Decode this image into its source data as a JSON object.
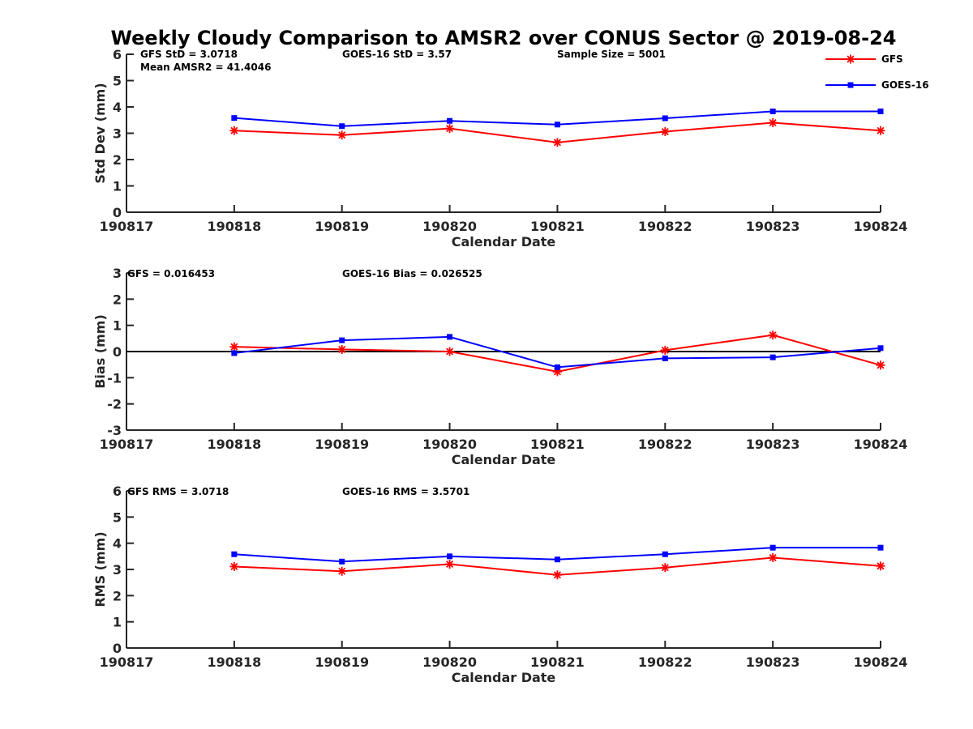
{
  "figure_title": "Weekly Cloudy Comparison to AMSR2 over CONUS Sector @ 2019-08-24",
  "legend": [
    {
      "label": "GFS",
      "color": "#ff0000",
      "marker": "asterisk"
    },
    {
      "label": "GOES-16",
      "color": "#0000ff",
      "marker": "square"
    }
  ],
  "chart_data": [
    {
      "type": "line",
      "title": "",
      "xlabel": "Calendar Date",
      "ylabel": "Std Dev (mm)",
      "xlim": [
        190817,
        190824
      ],
      "ylim": [
        0,
        6
      ],
      "x_ticks": [
        "190817",
        "190818",
        "190819",
        "190820",
        "190821",
        "190822",
        "190823",
        "190824"
      ],
      "y_ticks": [
        "0",
        "1",
        "2",
        "3",
        "4",
        "5",
        "6"
      ],
      "x": [
        190818,
        190819,
        190820,
        190821,
        190822,
        190823,
        190824
      ],
      "series": [
        {
          "name": "GFS",
          "color": "#ff0000",
          "marker": "asterisk",
          "values": [
            3.1,
            2.93,
            3.18,
            2.65,
            3.06,
            3.4,
            3.1
          ]
        },
        {
          "name": "GOES-16",
          "color": "#0000ff",
          "marker": "square",
          "values": [
            3.58,
            3.27,
            3.47,
            3.33,
            3.57,
            3.83,
            3.83
          ]
        }
      ],
      "annotations": [
        "GFS StD = 3.0718",
        "GOES-16 StD = 3.57",
        "Sample Size = 5001",
        "Mean AMSR2 = 41.4046"
      ],
      "grid": false,
      "legend_position": "top-right"
    },
    {
      "type": "line",
      "title": "",
      "xlabel": "Calendar Date",
      "ylabel": "Bias (mm)",
      "xlim": [
        190817,
        190824
      ],
      "ylim": [
        -3,
        3
      ],
      "x_ticks": [
        "190817",
        "190818",
        "190819",
        "190820",
        "190821",
        "190822",
        "190823",
        "190824"
      ],
      "y_ticks": [
        "-3",
        "-2",
        "-1",
        "0",
        "1",
        "2",
        "3"
      ],
      "x": [
        190818,
        190819,
        190820,
        190821,
        190822,
        190823,
        190824
      ],
      "series": [
        {
          "name": "GFS",
          "color": "#ff0000",
          "marker": "asterisk",
          "values": [
            0.18,
            0.08,
            0.0,
            -0.77,
            0.05,
            0.63,
            -0.52
          ]
        },
        {
          "name": "GOES-16",
          "color": "#0000ff",
          "marker": "square",
          "values": [
            -0.06,
            0.43,
            0.56,
            -0.6,
            -0.26,
            -0.22,
            0.13
          ]
        }
      ],
      "reference_line": 0,
      "annotations": [
        "GFS = 0.016453",
        "GOES-16 Bias  = 0.026525"
      ],
      "grid": false
    },
    {
      "type": "line",
      "title": "",
      "xlabel": "Calendar Date",
      "ylabel": "RMS (mm)",
      "xlim": [
        190817,
        190824
      ],
      "ylim": [
        0,
        6
      ],
      "x_ticks": [
        "190817",
        "190818",
        "190819",
        "190820",
        "190821",
        "190822",
        "190823",
        "190824"
      ],
      "y_ticks": [
        "0",
        "1",
        "2",
        "3",
        "4",
        "5",
        "6"
      ],
      "x": [
        190818,
        190819,
        190820,
        190821,
        190822,
        190823,
        190824
      ],
      "series": [
        {
          "name": "GFS",
          "color": "#ff0000",
          "marker": "asterisk",
          "values": [
            3.11,
            2.93,
            3.2,
            2.79,
            3.07,
            3.45,
            3.13
          ]
        },
        {
          "name": "GOES-16",
          "color": "#0000ff",
          "marker": "square",
          "values": [
            3.58,
            3.3,
            3.5,
            3.38,
            3.58,
            3.83,
            3.83
          ]
        }
      ],
      "annotations": [
        "GFS RMS = 3.0718",
        "GOES-16 RMS = 3.5701"
      ],
      "grid": false
    }
  ]
}
